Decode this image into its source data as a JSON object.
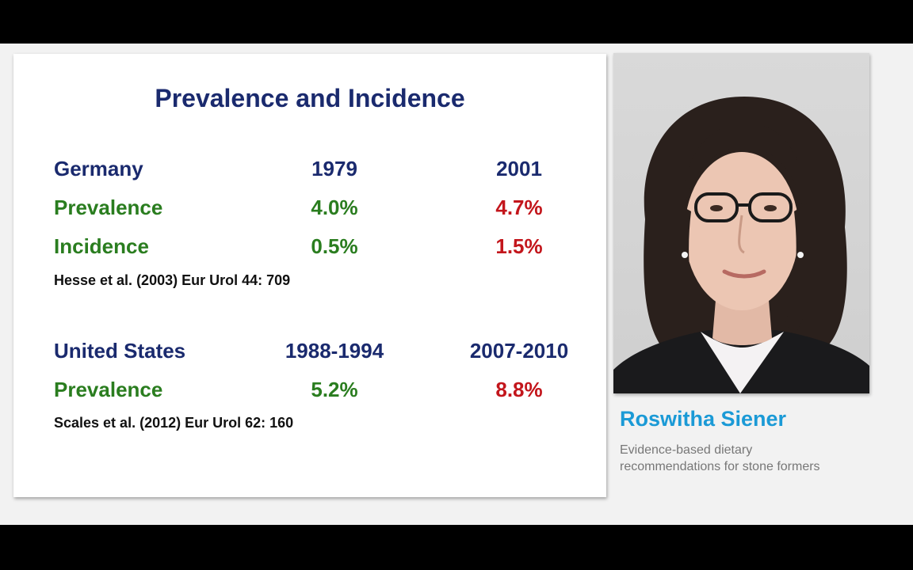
{
  "slide": {
    "title": "Prevalence and Incidence",
    "germany": {
      "label": "Germany",
      "year1": "1979",
      "year2": "2001",
      "rows": [
        {
          "label": "Prevalence",
          "v1": "4.0%",
          "v2": "4.7%"
        },
        {
          "label": "Incidence",
          "v1": "0.5%",
          "v2": "1.5%"
        }
      ],
      "citation": "Hesse et al. (2003) Eur Urol 44: 709"
    },
    "us": {
      "label": "United States",
      "year1": "1988-1994",
      "year2": "2007-2010",
      "rows": [
        {
          "label": "Prevalence",
          "v1": "5.2%",
          "v2": "8.8%"
        }
      ],
      "citation": "Scales et al. (2012) Eur Urol 62: 160"
    }
  },
  "speaker": {
    "name": "Roswitha Siener",
    "talk_title_line1": "Evidence-based dietary",
    "talk_title_line2": "recommendations for stone formers"
  },
  "colors": {
    "title_navy": "#1a2a6e",
    "green": "#2a7d1f",
    "red": "#c3161c",
    "speaker_blue": "#1b9ad6"
  }
}
